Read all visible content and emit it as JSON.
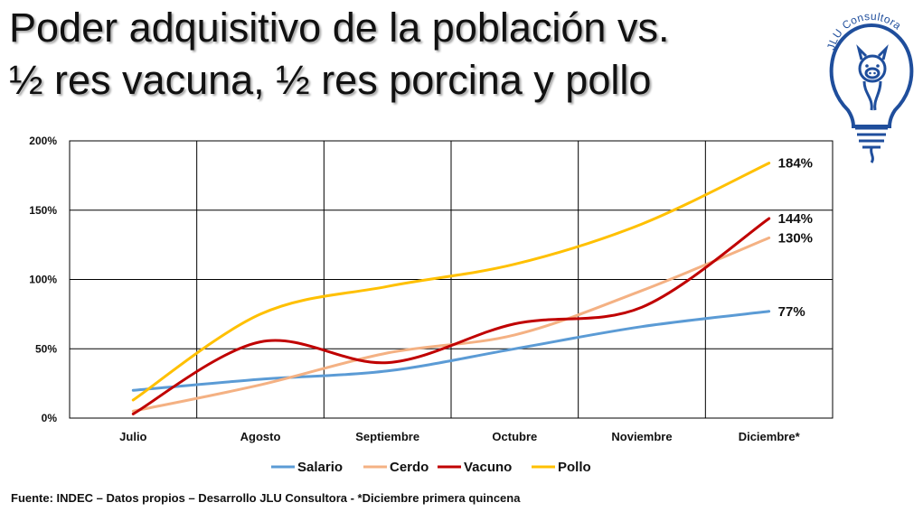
{
  "title_line1": "Poder adquisitivo de la población vs.",
  "title_line2": "½ res vacuna, ½ res porcina y pollo",
  "logo_text": "JLU Consultora",
  "source": "Fuente: INDEC – Datos propios – Desarrollo JLU Consultora - *Diciembre primera quincena",
  "chart_data": {
    "type": "line",
    "categories": [
      "Julio",
      "Agosto",
      "Septiembre",
      "Octubre",
      "Noviembre",
      "Diciembre*"
    ],
    "ylim": [
      0,
      200
    ],
    "yticks": [
      0,
      50,
      100,
      150,
      200
    ],
    "ytick_labels": [
      "0%",
      "50%",
      "100%",
      "150%",
      "200%"
    ],
    "grid": true,
    "legend_position": "bottom",
    "series": [
      {
        "name": "Salario",
        "color": "#5B9BD5",
        "values": [
          20,
          28,
          34,
          50,
          66,
          77
        ],
        "end_label": "77%"
      },
      {
        "name": "Cerdo",
        "color": "#F4B183",
        "values": [
          5,
          24,
          47,
          60,
          92,
          130
        ],
        "end_label": "130%"
      },
      {
        "name": "Vacuno",
        "color": "#C00000",
        "values": [
          3,
          55,
          40,
          68,
          80,
          144
        ],
        "end_label": "144%"
      },
      {
        "name": "Pollo",
        "color": "#FFC000",
        "values": [
          13,
          75,
          95,
          111,
          140,
          184
        ],
        "end_label": "184%"
      }
    ]
  }
}
